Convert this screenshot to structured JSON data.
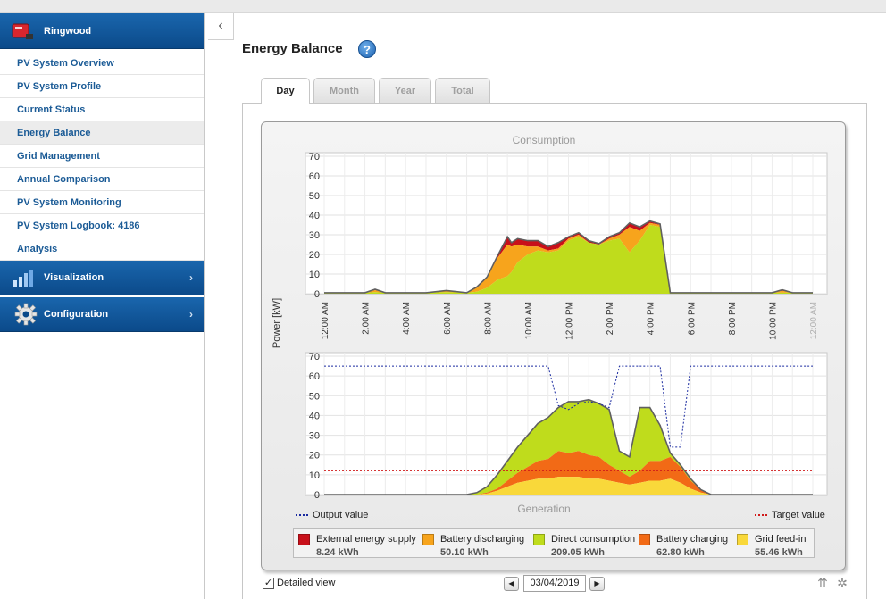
{
  "sidebar": {
    "plant": {
      "name": "Ringwood",
      "icon": "inverter-icon"
    },
    "items": [
      {
        "label": "PV System Overview",
        "active": false
      },
      {
        "label": "PV System Profile",
        "active": false
      },
      {
        "label": "Current Status",
        "active": false
      },
      {
        "label": "Energy Balance",
        "active": true
      },
      {
        "label": "Grid Management",
        "active": false
      },
      {
        "label": "Annual Comparison",
        "active": false
      },
      {
        "label": "PV System Monitoring",
        "active": false
      },
      {
        "label": "PV System Logbook: 4186",
        "active": false
      },
      {
        "label": "Analysis",
        "active": false
      }
    ],
    "visualization": {
      "label": "Visualization",
      "icon": "bar-chart-icon"
    },
    "configuration": {
      "label": "Configuration",
      "icon": "gear-icon"
    }
  },
  "main": {
    "title": "Energy Balance",
    "tabs": [
      {
        "label": "Day",
        "active": true
      },
      {
        "label": "Month",
        "active": false
      },
      {
        "label": "Year",
        "active": false
      },
      {
        "label": "Total",
        "active": false
      }
    ],
    "legend": [
      {
        "name": "External energy supply",
        "value": "8.24 kWh",
        "color": "#c8101a"
      },
      {
        "name": "Battery discharging",
        "value": "50.10 kWh",
        "color": "#f7a41c"
      },
      {
        "name": "Direct consumption",
        "value": "209.05 kWh",
        "color": "#bfdc1c"
      },
      {
        "name": "Battery charging",
        "value": "62.80 kWh",
        "color": "#f26a16"
      },
      {
        "name": "Grid feed-in",
        "value": "55.46 kWh",
        "color": "#f9d83a"
      }
    ],
    "line_legend": {
      "output": {
        "label": "Output value",
        "color": "#1a2aa0"
      },
      "target": {
        "label": "Target value",
        "color": "#d01a1a"
      }
    },
    "footer": {
      "detailed_view_label": "Detailed view",
      "detailed_view_checked": true,
      "date": "03/04/2019"
    }
  },
  "chart_data": [
    {
      "type": "area",
      "title": "Consumption",
      "ylabel": "Power [kW]",
      "ylim": [
        0,
        70
      ],
      "yticks": [
        0,
        10,
        20,
        30,
        40,
        50,
        60,
        70
      ],
      "xlim": [
        0,
        24
      ],
      "xticks": [
        "12:00 AM",
        "2:00 AM",
        "4:00 AM",
        "6:00 AM",
        "8:00 AM",
        "10:00 AM",
        "12:00 PM",
        "2:00 PM",
        "4:00 PM",
        "6:00 PM",
        "8:00 PM",
        "10:00 PM",
        "12:00 AM"
      ],
      "grid": true,
      "x": [
        0,
        1,
        2,
        2.5,
        3,
        4,
        5,
        6,
        7,
        7.5,
        8,
        8.5,
        9,
        9.2,
        9.5,
        10,
        10.5,
        11,
        11.5,
        12,
        12.5,
        13,
        13.5,
        14,
        14.5,
        15,
        15.5,
        16,
        16.5,
        17,
        18,
        19,
        20,
        21,
        22,
        22.5,
        23,
        24
      ],
      "series": [
        {
          "name": "Direct consumption",
          "values": [
            0.5,
            0.5,
            0.5,
            0.8,
            0.5,
            0.5,
            0.5,
            0.8,
            0.5,
            1,
            3,
            7,
            9,
            11,
            16,
            20,
            22,
            21,
            22,
            27,
            29,
            26,
            25,
            27,
            28,
            21,
            27,
            35,
            34,
            0.5,
            0.5,
            0.5,
            0.5,
            0.5,
            0.5,
            0.5,
            0.5,
            0.5
          ]
        },
        {
          "name": "Battery discharging",
          "values": [
            0,
            0,
            0,
            1,
            0,
            0,
            0,
            0.5,
            0,
            2,
            5,
            11,
            16,
            13,
            9,
            4,
            2,
            1,
            1,
            1,
            1,
            0,
            0,
            1,
            2,
            13,
            5,
            1,
            1,
            0,
            0,
            0,
            0,
            0,
            0,
            1,
            0,
            0
          ]
        },
        {
          "name": "External energy supply",
          "values": [
            0,
            0,
            0,
            0.5,
            0,
            0,
            0,
            0.3,
            0,
            0.5,
            0.5,
            1,
            4,
            2,
            3,
            3,
            3,
            2,
            3,
            1,
            1,
            1,
            0.5,
            1,
            1,
            2,
            2,
            1,
            0.5,
            0,
            0,
            0,
            0,
            0,
            0,
            0.5,
            0,
            0
          ]
        }
      ]
    },
    {
      "type": "area",
      "title": "Generation",
      "ylabel": "Power [kW]",
      "ylim": [
        0,
        70
      ],
      "yticks": [
        0,
        10,
        20,
        30,
        40,
        50,
        60,
        70
      ],
      "xlim": [
        0,
        24
      ],
      "grid": true,
      "x": [
        0,
        7,
        7.5,
        8,
        8.5,
        9,
        9.5,
        10,
        10.5,
        11,
        11.5,
        12,
        12.5,
        13,
        13.5,
        14,
        14.5,
        15,
        15.5,
        16,
        16.5,
        17,
        17.5,
        18,
        18.5,
        19,
        24
      ],
      "series": [
        {
          "name": "Grid feed-in",
          "values": [
            0,
            0,
            0,
            0.5,
            2,
            4,
            6,
            7,
            8,
            8,
            9,
            9,
            9,
            8,
            8,
            7,
            6,
            5,
            6,
            7,
            7,
            8,
            6,
            3,
            1,
            0,
            0
          ]
        },
        {
          "name": "Battery charging",
          "values": [
            0,
            0,
            0,
            0.5,
            1,
            3,
            5,
            7,
            9,
            10,
            13,
            12,
            13,
            12,
            11,
            8,
            6,
            4,
            6,
            10,
            10,
            11,
            8,
            4,
            1.5,
            0,
            0
          ]
        },
        {
          "name": "Direct consumption",
          "values": [
            0,
            0,
            1,
            3,
            7,
            10,
            13,
            16,
            19,
            21,
            22,
            26,
            25,
            28,
            27,
            28,
            10,
            10,
            32,
            27,
            18,
            2,
            1,
            1,
            0,
            0,
            0
          ]
        },
        {
          "name": "Output value",
          "line": true,
          "values": [
            65,
            65,
            65,
            65,
            65,
            65,
            65,
            65,
            65,
            65,
            45,
            43,
            46,
            47,
            46,
            44,
            65,
            65,
            65,
            65,
            65,
            24,
            24,
            65,
            65,
            65,
            65
          ]
        },
        {
          "name": "Target value",
          "line": true,
          "values": [
            12,
            12,
            12,
            12,
            12,
            12,
            12,
            12,
            12,
            12,
            12,
            12,
            12,
            12,
            12,
            12,
            12,
            12,
            12,
            12,
            12,
            12,
            12,
            12,
            12,
            12,
            12
          ]
        }
      ]
    }
  ]
}
